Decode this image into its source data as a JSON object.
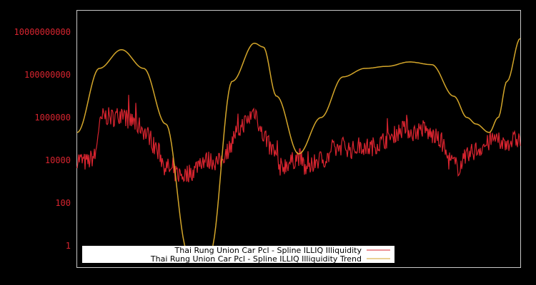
{
  "chart_data": {
    "type": "line",
    "title": "",
    "xlabel": "",
    "ylabel": "",
    "yscale": "log",
    "ylim": [
      0.1,
      50000000000
    ],
    "y_ticks": [
      {
        "value": 10000000000,
        "label": "10000000000"
      },
      {
        "value": 100000000,
        "label": "100000000"
      },
      {
        "value": 1000000,
        "label": "1000000"
      },
      {
        "value": 10000,
        "label": "10000"
      },
      {
        "value": 100,
        "label": "100"
      },
      {
        "value": 1,
        "label": "1"
      }
    ],
    "grid": false,
    "legend_position": "bottom",
    "colors": {
      "background": "#000000",
      "frame": "#c8c8c8",
      "tick_text": "#d8242f",
      "illiq": "#d8242f",
      "trend": "#d4a62a"
    },
    "series": [
      {
        "name": "Thai Rung Union Car Pcl - Spline ILLIQ Illiquidity",
        "color": "#d8242f",
        "x": [
          0,
          0.02,
          0.04,
          0.05,
          0.06,
          0.08,
          0.1,
          0.12,
          0.14,
          0.16,
          0.18,
          0.2,
          0.22,
          0.24,
          0.26,
          0.28,
          0.3,
          0.32,
          0.34,
          0.36,
          0.38,
          0.4,
          0.42,
          0.44,
          0.46,
          0.48,
          0.5,
          0.52,
          0.54,
          0.56,
          0.58,
          0.6,
          0.62,
          0.64,
          0.66,
          0.68,
          0.7,
          0.72,
          0.74,
          0.76,
          0.78,
          0.8,
          0.82,
          0.84,
          0.86,
          0.88,
          0.9,
          0.92,
          0.94,
          0.96,
          0.98,
          1.0
        ],
        "values": [
          12000,
          8000,
          15000,
          400000,
          1200000,
          1000000,
          1500000,
          700000,
          400000,
          150000,
          30000,
          5000,
          2500,
          2000,
          3000,
          10000,
          10000,
          8000,
          30000,
          200000,
          600000,
          2000000,
          150000,
          30000,
          5000,
          8000,
          15000,
          3000,
          10000,
          12000,
          30000,
          50000,
          30000,
          50000,
          40000,
          60000,
          100000,
          200000,
          300000,
          200000,
          300000,
          150000,
          80000,
          10000,
          5000,
          15000,
          30000,
          50000,
          100000,
          60000,
          80000,
          100000
        ]
      },
      {
        "name": "Thai Rung Union Car Pcl - Spline ILLIQ Illiquidity Trend",
        "color": "#d4a62a",
        "x": [
          0,
          0.05,
          0.1,
          0.15,
          0.2,
          0.25,
          0.3,
          0.35,
          0.4,
          0.42,
          0.45,
          0.5,
          0.55,
          0.6,
          0.65,
          0.7,
          0.75,
          0.8,
          0.85,
          0.88,
          0.9,
          0.93,
          0.95,
          0.97,
          1.0
        ],
        "values": [
          200000,
          200000000,
          1500000000,
          200000000,
          500000,
          0.5,
          0.5,
          50000000,
          3000000000,
          2000000000,
          10000000,
          20000,
          1000000,
          80000000,
          200000000,
          250000000,
          400000000,
          300000000,
          10000000,
          1000000,
          500000,
          200000,
          1000000,
          50000000,
          5000000000
        ]
      }
    ]
  },
  "legend": {
    "items": [
      {
        "label": "Thai Rung Union Car Pcl - Spline ILLIQ Illiquidity",
        "color": "#d8242f"
      },
      {
        "label": "Thai Rung Union Car Pcl - Spline ILLIQ Illiquidity Trend",
        "color": "#d4a62a"
      }
    ]
  }
}
